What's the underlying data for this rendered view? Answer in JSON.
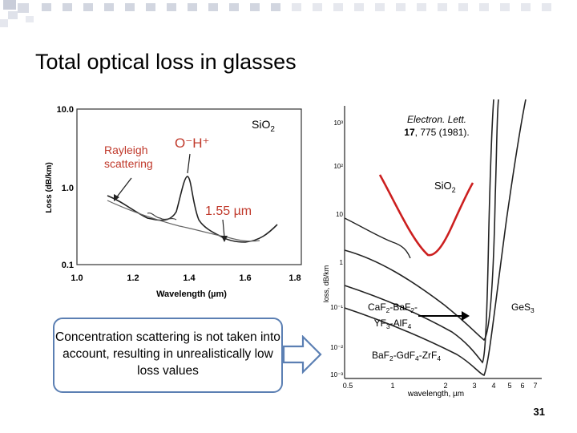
{
  "slide": {
    "title": "Total optical loss in glasses",
    "page_number": "31",
    "callout_text": "Concentration scattering is not taken into account, resulting in unrealistically low loss values"
  },
  "left_chart": {
    "ylabel": "Loss (dB/km)",
    "xlabel": "Wavelength (µm)",
    "y_ticks": [
      "10.0",
      "1.0",
      "0.1"
    ],
    "x_ticks": [
      "1.0",
      "1.2",
      "1.4",
      "1.6",
      "1.8"
    ],
    "annotation_rayleigh": "Rayleigh scattering",
    "annotation_oh": "O⁻H⁺",
    "annotation_155": "1.55 µm",
    "label_sio2": "SiO₂"
  },
  "right_chart": {
    "reference": "Electron. Lett. 17, 775 (1981).",
    "ylabel": "loss, dB/km",
    "xlabel": "wavelength, µm",
    "x_ticks": [
      "0.5",
      "1",
      "2",
      "3",
      "4",
      "5",
      "6",
      "7"
    ],
    "y_ticks": [
      "10³",
      "10²",
      "10",
      "1",
      "10⁻¹",
      "10⁻²",
      "10⁻³"
    ],
    "label_sio2": "SiO₂",
    "label_caf2": "CaF₂-BaF₂-YF₃-AlF₄",
    "label_ges3": "GeS₃",
    "label_baf2": "BaF₂-GdF₄-ZrF₄"
  },
  "colors": {
    "accent_blue": "#5b7fb3",
    "curve_red": "#cc1f1f",
    "deco_square": "#c9cdd9"
  }
}
